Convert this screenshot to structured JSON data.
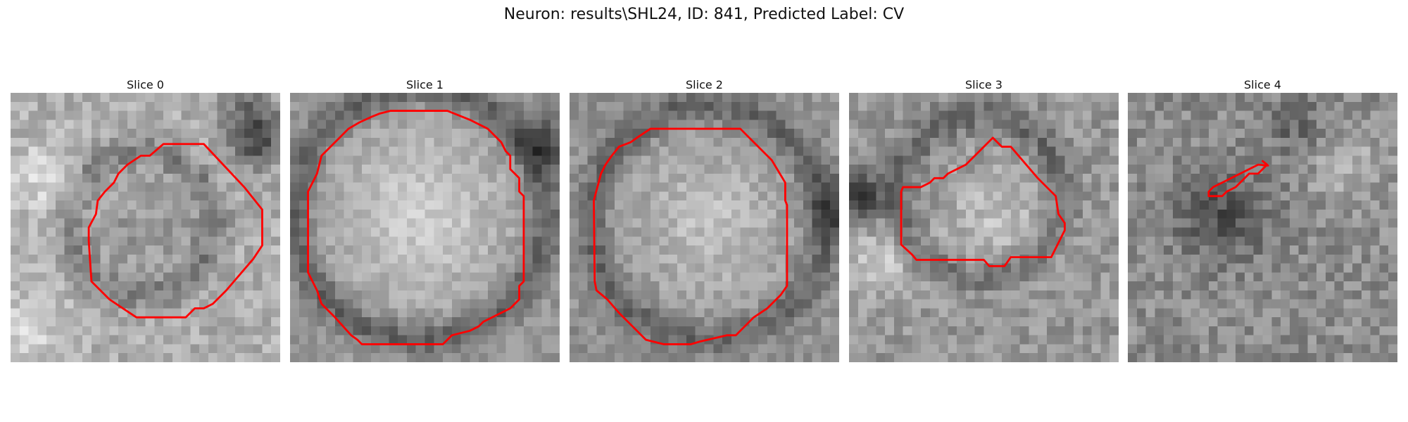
{
  "figure": {
    "title": "Neuron: results\\SHL24, ID: 841, Predicted Label: CV"
  },
  "slices": [
    {
      "title": "Slice 0"
    },
    {
      "title": "Slice 1"
    },
    {
      "title": "Slice 2"
    },
    {
      "title": "Slice 3"
    },
    {
      "title": "Slice 4"
    }
  ],
  "colors": {
    "contour": "#ff0000",
    "background": "#ffffff"
  }
}
